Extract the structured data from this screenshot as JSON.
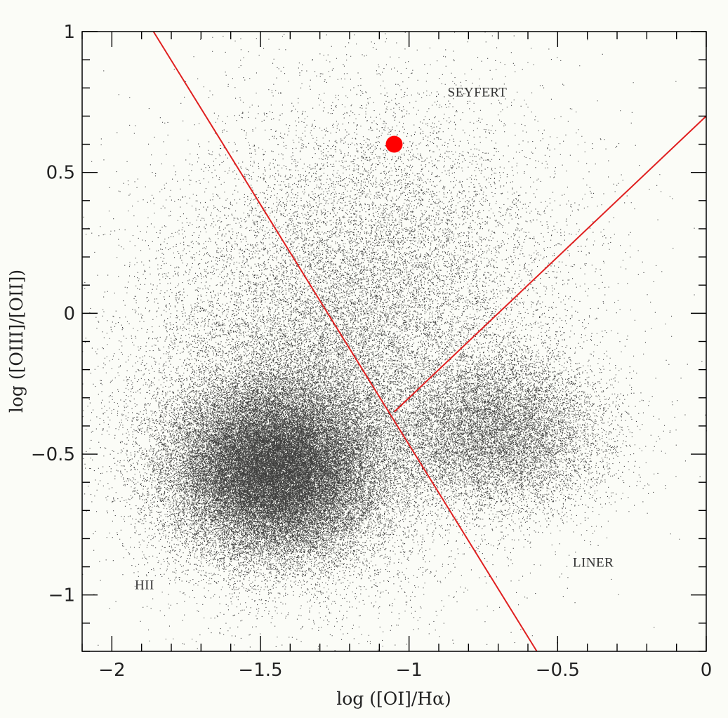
{
  "chart_data": {
    "type": "scatter",
    "title": "",
    "xlabel": "log ([OI]/Hα)",
    "ylabel": "log ([OIII]/[OII])",
    "xlim": [
      -2.1,
      0
    ],
    "ylim": [
      -1.2,
      1
    ],
    "xticks": [
      -2,
      -1.5,
      -1,
      -0.5,
      0
    ],
    "xtick_labels": [
      "−2",
      "−1.5",
      "−1",
      "−0.5",
      "0"
    ],
    "yticks": [
      -1,
      -0.5,
      0,
      0.5,
      1
    ],
    "ytick_labels": [
      "−1",
      "−0.5",
      "0",
      "0.5",
      "1"
    ],
    "grid": false,
    "legend": "none",
    "region_labels": [
      {
        "text": "SEYFERT",
        "x": -0.77,
        "y": 0.77
      },
      {
        "text": "LINER",
        "x": -0.38,
        "y": -0.9
      },
      {
        "text": "HII",
        "x": -1.89,
        "y": -0.98
      }
    ],
    "dividing_lines": [
      {
        "name": "",
        "color": "#e02020",
        "points": [
          [
            -1.86,
            1.0
          ],
          [
            -0.57,
            -1.2
          ]
        ]
      },
      {
        "name": "",
        "color": "#e02020",
        "points": [
          [
            -1.05,
            -0.35
          ],
          [
            0.0,
            0.7
          ]
        ]
      }
    ],
    "highlight_point": {
      "x": -1.05,
      "y": 0.6,
      "color": "#ff0000"
    },
    "scatter_clusters": [
      {
        "name": "",
        "center_x": -1.45,
        "center_y": -0.56,
        "sigma_x": 0.17,
        "sigma_y": 0.15,
        "count": 42000
      },
      {
        "name": "",
        "center_x": -1.38,
        "center_y": -0.35,
        "sigma_x": 0.28,
        "sigma_y": 0.3,
        "count": 12000
      },
      {
        "name": "",
        "center_x": -0.7,
        "center_y": -0.42,
        "sigma_x": 0.18,
        "sigma_y": 0.14,
        "count": 11000
      },
      {
        "name": "",
        "center_x": -1.1,
        "center_y": 0.15,
        "sigma_x": 0.3,
        "sigma_y": 0.32,
        "count": 9000
      },
      {
        "name": "",
        "center_x": -1.2,
        "center_y": -0.15,
        "sigma_x": 0.42,
        "sigma_y": 0.45,
        "count": 5000
      }
    ],
    "colors": {
      "points": "#000000",
      "lines": "#e02020",
      "highlight": "#ff0000",
      "frame": "#000000",
      "background": "#fbfcf7"
    }
  }
}
